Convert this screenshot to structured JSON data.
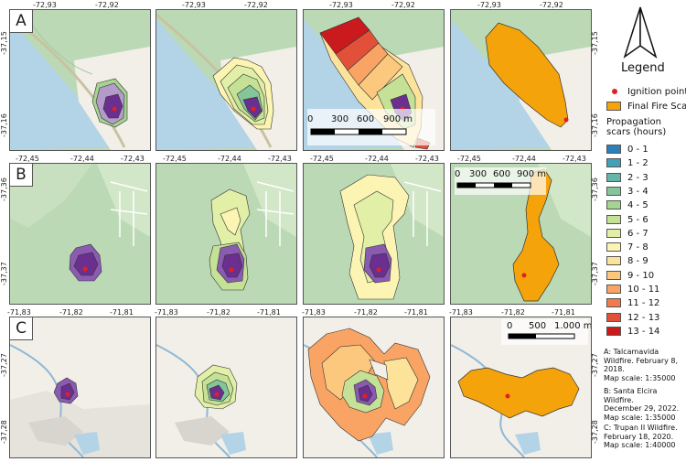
{
  "rows": [
    {
      "letter": "A",
      "top_coords": [
        "-72,93",
        "-72,92"
      ],
      "left_coords": [
        "-37,15",
        "-37,16"
      ],
      "right_coords": [
        "-37,15",
        "-37,16"
      ]
    },
    {
      "letter": "B",
      "top_coords": [
        "-72,45",
        "-72,44",
        "-72,43"
      ],
      "left_coords": [
        "-37,36",
        "-37,37"
      ],
      "right_coords": [
        "-37,36",
        "-37,37"
      ]
    },
    {
      "letter": "C",
      "top_coords": [
        "-71,83",
        "-71,82",
        "-71,81"
      ],
      "left_coords": [
        "-37,27",
        "-37,28"
      ],
      "right_coords": [
        "-37,27",
        "-37,28"
      ]
    }
  ],
  "scalebars": {
    "a": {
      "labels": [
        "0",
        "300",
        "600",
        "900 m"
      ]
    },
    "b": {
      "labels": [
        "0",
        "300",
        "600",
        "900 m"
      ]
    },
    "c": {
      "labels": [
        "0",
        "500",
        "1.000 m"
      ]
    }
  },
  "legend": {
    "title": "Legend",
    "north_arrow": "north-arrow-icon",
    "ignition_label": "Ignition point",
    "final_scar_label": "Final Fire Scar",
    "propagation_title_1": "Propagation",
    "propagation_title_2": "scars (hours)",
    "classes": [
      {
        "label": "0 - 1",
        "color": "#2c7fb8"
      },
      {
        "label": "1 - 2",
        "color": "#41a2b6"
      },
      {
        "label": "2 - 3",
        "color": "#63b6a8"
      },
      {
        "label": "3 - 4",
        "color": "#84c59a"
      },
      {
        "label": "4 - 5",
        "color": "#a5d492"
      },
      {
        "label": "5 - 6",
        "color": "#c5e196"
      },
      {
        "label": "6 - 7",
        "color": "#e2efa6"
      },
      {
        "label": "7 - 8",
        "color": "#fbf4b3"
      },
      {
        "label": "8 - 9",
        "color": "#fde39a"
      },
      {
        "label": "9 - 10",
        "color": "#fcc87e"
      },
      {
        "label": "10 - 11",
        "color": "#f9a464"
      },
      {
        "label": "11 - 12",
        "color": "#f17b4d"
      },
      {
        "label": "12 - 13",
        "color": "#e2503a"
      },
      {
        "label": "13 - 14",
        "color": "#cb1a1d"
      }
    ],
    "captions": {
      "a": [
        "A: Talcamavida",
        "Wildfire. February 8,",
        "2018.",
        "Map scale: 1:35000"
      ],
      "b": [
        "B: Santa Elcira Wildfire.",
        "December 29, 2022.",
        "Map scale: 1:35000"
      ],
      "c": [
        "C: Trupan II Wildfire.",
        "February 18, 2020.",
        "Map scale: 1:40000"
      ]
    }
  },
  "colors": {
    "water": "#b3d3e6",
    "forest": "#bcd9b5",
    "land": "#f2efe9",
    "purple_dark": "#6a2f8f",
    "purple_mid": "#8a5bb0",
    "purple_light": "#b49bc9",
    "final_scar": "#f5a30a",
    "ignition": "#e32020"
  }
}
